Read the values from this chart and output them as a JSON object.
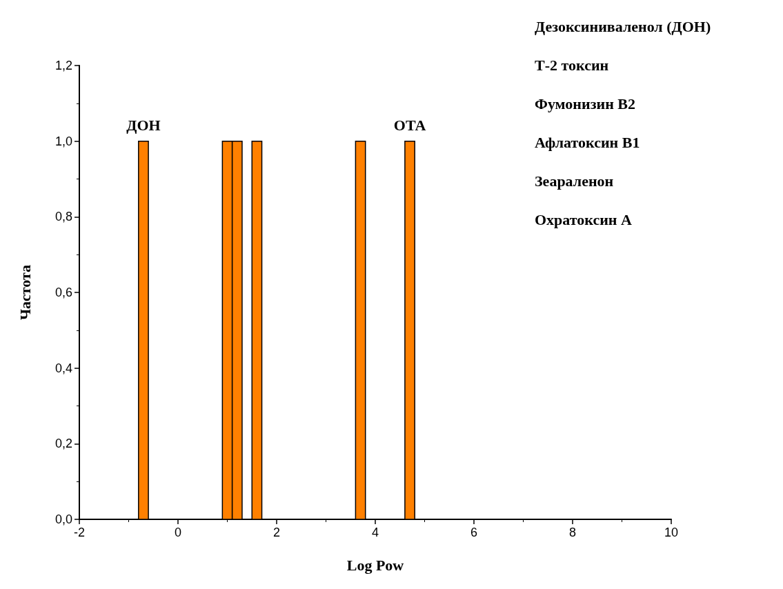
{
  "chart_data": {
    "type": "histogram",
    "xlabel": "Log Pow",
    "ylabel": "Частота",
    "bins": [
      -0.8,
      -0.6,
      0.9,
      1.1,
      1.3,
      1.5,
      1.7,
      3.6,
      3.8,
      4.6,
      4.8
    ],
    "values": [
      1,
      0,
      1,
      1,
      0,
      1,
      0,
      1,
      0,
      1
    ],
    "color": "#ff8000",
    "xlim": [
      -2,
      10
    ],
    "xticks": [
      -2,
      0,
      2,
      4,
      6,
      8,
      10
    ],
    "ylim": [
      0,
      1.2
    ],
    "yticks": [
      {
        "value": 0,
        "label": "0,0"
      },
      {
        "value": 0.2,
        "label": "0,2"
      },
      {
        "value": 0.4,
        "label": "0,4"
      },
      {
        "value": 0.6,
        "label": "0,6"
      },
      {
        "value": 0.8,
        "label": "0,8"
      },
      {
        "value": 1,
        "label": "1,0"
      },
      {
        "value": 1.2,
        "label": "1,2"
      }
    ],
    "grid": false,
    "annotations": [
      {
        "text": "ДОН",
        "x": -0.7,
        "y": 1
      },
      {
        "text": "ОТА",
        "x": 4.7,
        "y": 1
      },
      "Дезоксиниваленол (ДОН)",
      "Т-2 токсин",
      "Фумонизин В2",
      "Афлатоксин В1",
      "Зеараленон",
      "Охратоксин А"
    ]
  }
}
